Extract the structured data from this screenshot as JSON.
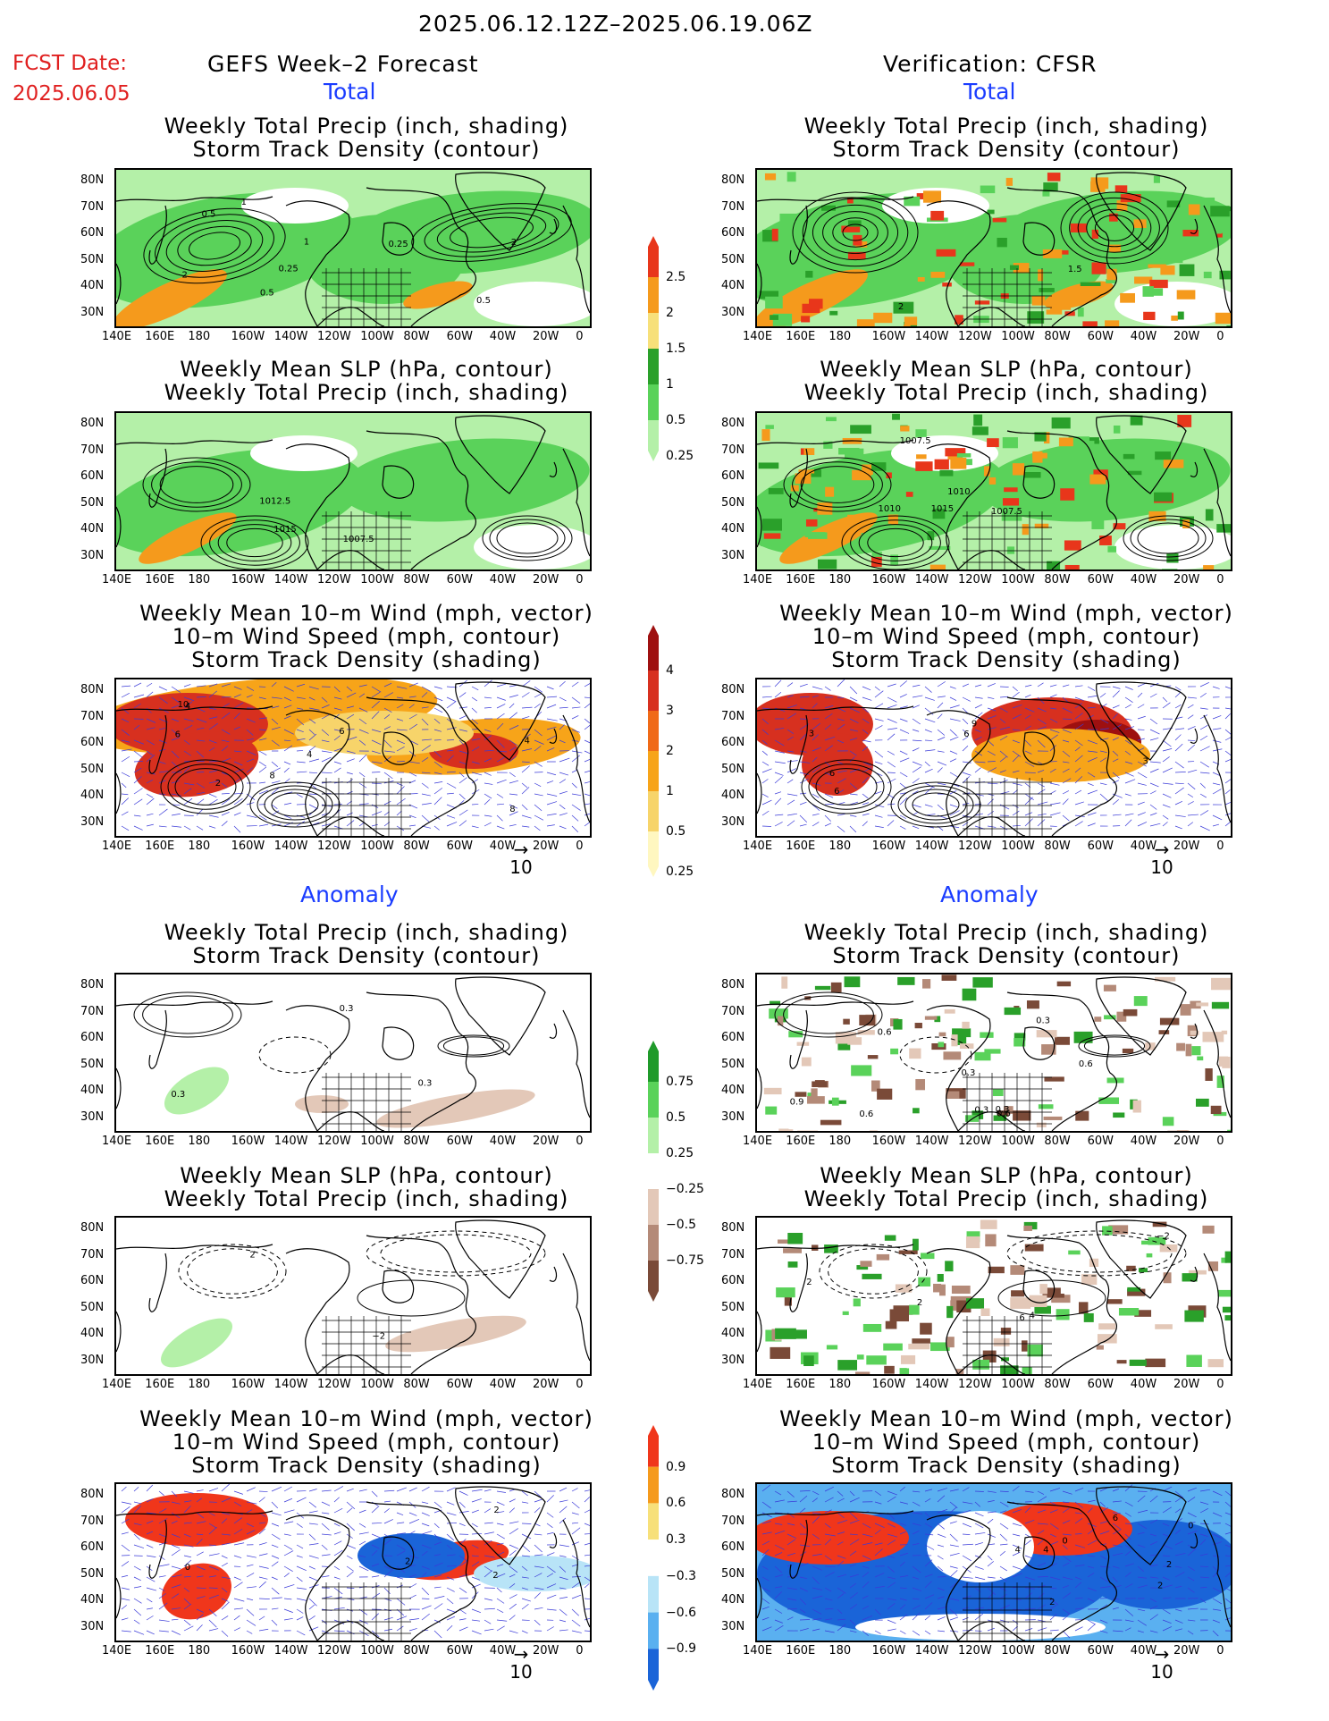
{
  "header": {
    "date_range": "2025.06.12.12Z–2025.06.19.06Z",
    "fcst_label": "FCST Date:",
    "fcst_date": "2025.06.05",
    "left_title": "GEFS Week–2 Forecast",
    "right_title": "Verification: CFSR",
    "total_label": "Total",
    "anomaly_label": "Anomaly"
  },
  "titles": {
    "precip_storm": [
      "Weekly Total Precip (inch, shading)",
      "Storm Track Density (contour)"
    ],
    "slp_precip": [
      "Weekly Mean SLP (hPa, contour)",
      "Weekly Total Precip (inch, shading)"
    ],
    "wind": [
      "Weekly Mean 10–m Wind (mph, vector)",
      "10–m Wind Speed (mph, contour)",
      "Storm Track Density (shading)"
    ]
  },
  "axes": {
    "lon_ticks": [
      "140E",
      "160E",
      "180",
      "160W",
      "140W",
      "120W",
      "100W",
      "80W",
      "60W",
      "40W",
      "20W",
      "0"
    ],
    "lat_ticks": [
      "80N",
      "70N",
      "60N",
      "50N",
      "40N",
      "30N"
    ]
  },
  "vector_ref": "10",
  "colorbars": {
    "precip_total": {
      "labels": [
        "2.5",
        "2",
        "1.5",
        "1",
        "0.5",
        "0.25"
      ],
      "colors": [
        "#e8361b",
        "#f59a1c",
        "#f7e07a",
        "#2aa02a",
        "#5ad25a",
        "#b4f0a8"
      ]
    },
    "storm_total": {
      "labels": [
        "4",
        "3",
        "2",
        "1",
        "0.5",
        "0.25"
      ],
      "colors": [
        "#9e1010",
        "#d7301f",
        "#f06a17",
        "#f7a419",
        "#f7d46a",
        "#fff7c0"
      ]
    },
    "precip_anom": {
      "labels": [
        "0.75",
        "0.5",
        "0.25",
        "−0.25",
        "−0.5",
        "−0.75"
      ],
      "colors": [
        "#1f9a2a",
        "#5ad25a",
        "#b4f0a8",
        "#ffffff",
        "#e3c8b8",
        "#b48a78",
        "#7a4a38"
      ]
    },
    "storm_anom": {
      "labels": [
        "0.9",
        "0.6",
        "0.3",
        "−0.3",
        "−0.6",
        "−0.9"
      ],
      "colors": [
        "#f0361b",
        "#f59a1c",
        "#f7e07a",
        "#ffffff",
        "#b8e4f7",
        "#5ab0f0",
        "#1a64d8"
      ]
    }
  },
  "colors": {
    "precip_light": "#b4f0a8",
    "precip_mid": "#5ad25a",
    "precip_dark": "#2aa02a",
    "orange": "#f59a1c",
    "red": "#e8361b",
    "storm_red": "#d7301f",
    "blue": "#1a64d8",
    "brown": "#b48a78"
  },
  "panel_labels": {
    "p1": [
      "1",
      "2",
      "1",
      "0.5",
      "2",
      "0.5",
      "0.25",
      "0.5",
      "0.25"
    ],
    "p2": [
      "2",
      "1.5"
    ],
    "p3": [
      "1015",
      "1007.5",
      "1012.5"
    ],
    "p4": [
      "1015",
      "1007.5",
      "1010",
      "1010",
      "1007.5"
    ],
    "p5": [
      "4",
      "6",
      "2",
      "4",
      "8",
      "6",
      "8",
      "10",
      "4"
    ],
    "p6": [
      "6",
      "3",
      "6",
      "9",
      "6",
      "3"
    ],
    "p7": [
      "0.3",
      "0.3",
      "0.3"
    ],
    "p8": [
      "0.6",
      "0.3",
      "0.9",
      "0.3",
      "0.6",
      "0.6",
      "0.3",
      "0.6",
      "0.3"
    ],
    "p9": [
      "−2",
      "2"
    ],
    "p10": [
      "4",
      "2",
      "−2",
      "6",
      "2"
    ],
    "p11": [
      "2",
      "2",
      "2",
      "0"
    ],
    "p12": [
      "0",
      "2",
      "6",
      "4",
      "2",
      "4",
      "2",
      "0"
    ]
  }
}
